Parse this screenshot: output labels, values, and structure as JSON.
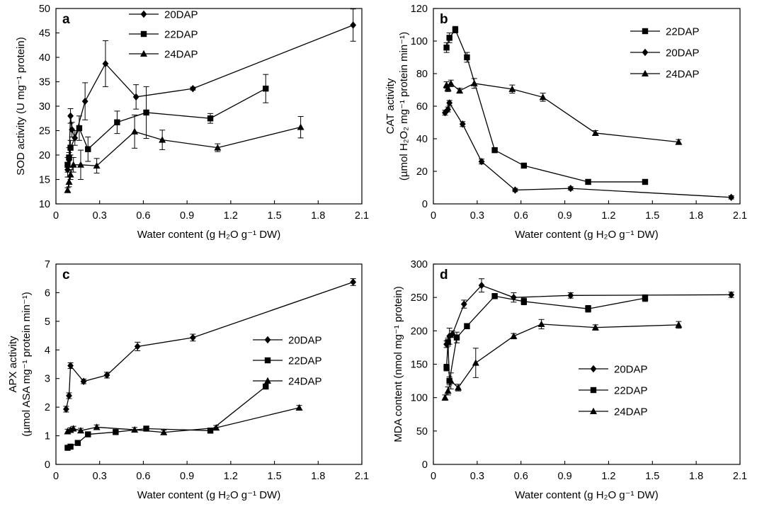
{
  "chart_data": [
    {
      "type": "line",
      "panel": "a",
      "xlabel": "Water content (g H₂O g⁻¹ DW)",
      "ylabel": "SOD activity (U mg⁻¹ protein)",
      "xlim": [
        0,
        2.1
      ],
      "ylim": [
        10,
        50
      ],
      "xticks": [
        "0",
        "0.3",
        "0.6",
        "0.9",
        "1.2",
        "1.5",
        "1.8",
        "2.1"
      ],
      "yticks": [
        "10",
        "15",
        "20",
        "25",
        "30",
        "35",
        "40",
        "45",
        "50"
      ],
      "grid": false,
      "legend_position": "top-center",
      "series": [
        {
          "name": "20DAP",
          "marker": "diamond",
          "points": [
            [
              0.08,
              17.0,
              1.5
            ],
            [
              0.09,
              19.0,
              1.5
            ],
            [
              0.1,
              28.0,
              1.5
            ],
            [
              0.11,
              25.2,
              1.5
            ],
            [
              0.13,
              23.5,
              1.5
            ],
            [
              0.2,
              31.0,
              3.8
            ],
            [
              0.34,
              38.7,
              4.7
            ],
            [
              0.55,
              31.9,
              2.5
            ],
            [
              0.94,
              33.6,
              0.3
            ],
            [
              2.04,
              46.6,
              3.3
            ]
          ]
        },
        {
          "name": "22DAP",
          "marker": "square",
          "points": [
            [
              0.08,
              18.0,
              1.5
            ],
            [
              0.09,
              19.5,
              2.0
            ],
            [
              0.1,
              21.5,
              1.5
            ],
            [
              0.16,
              25.5,
              2.5
            ],
            [
              0.22,
              21.2,
              2.5
            ],
            [
              0.42,
              26.7,
              2.3
            ],
            [
              0.62,
              28.7,
              5.3
            ],
            [
              1.06,
              27.5,
              1.0
            ],
            [
              1.44,
              33.6,
              2.9
            ]
          ]
        },
        {
          "name": "24DAP",
          "marker": "triangle",
          "points": [
            [
              0.08,
              12.8,
              0.5
            ],
            [
              0.09,
              14.5,
              1.0
            ],
            [
              0.1,
              16.0,
              1.0
            ],
            [
              0.12,
              18.0,
              1.5
            ],
            [
              0.17,
              18.0,
              3.0
            ],
            [
              0.28,
              17.8,
              1.5
            ],
            [
              0.54,
              24.8,
              3.4
            ],
            [
              0.73,
              23.1,
              2.0
            ],
            [
              1.11,
              21.5,
              0.8
            ],
            [
              1.68,
              25.7,
              2.2
            ]
          ]
        }
      ]
    },
    {
      "type": "line",
      "panel": "b",
      "xlabel": "Water content (g H₂O g⁻¹ DW)",
      "ylabel": "CAT activity (µmol H₂O₂ mg⁻¹ protein min⁻¹)",
      "xlim": [
        0,
        2.1
      ],
      "ylim": [
        0,
        120
      ],
      "xticks": [
        "0",
        "0.3",
        "0.6",
        "0.9",
        "1.2",
        "1.5",
        "1.8",
        "2.1"
      ],
      "yticks": [
        "0",
        "20",
        "40",
        "60",
        "80",
        "100",
        "120"
      ],
      "grid": false,
      "legend_position": "top-right",
      "series": [
        {
          "name": "22DAP",
          "marker": "square",
          "points": [
            [
              0.09,
              96,
              3
            ],
            [
              0.11,
              102,
              3
            ],
            [
              0.15,
              107,
              2
            ],
            [
              0.23,
              90,
              3
            ],
            [
              0.42,
              33,
              1.5
            ],
            [
              0.62,
              23.5,
              1.5
            ],
            [
              1.06,
              13.5,
              1.5
            ],
            [
              1.45,
              13.5,
              1.5
            ]
          ]
        },
        {
          "name": "20DAP",
          "marker": "diamond",
          "points": [
            [
              0.08,
              56,
              1.5
            ],
            [
              0.1,
              58,
              1.5
            ],
            [
              0.11,
              62,
              1.5
            ],
            [
              0.2,
              49,
              1.5
            ],
            [
              0.33,
              26,
              1.5
            ],
            [
              0.56,
              8.5,
              1
            ],
            [
              0.94,
              9.5,
              1
            ],
            [
              2.04,
              4,
              1
            ]
          ]
        },
        {
          "name": "24DAP",
          "marker": "triangle",
          "points": [
            [
              0.09,
              73,
              2
            ],
            [
              0.1,
              71,
              2
            ],
            [
              0.12,
              74,
              2
            ],
            [
              0.18,
              69.5,
              1.5
            ],
            [
              0.28,
              74,
              3
            ],
            [
              0.54,
              70.5,
              2.5
            ],
            [
              0.75,
              65.5,
              2.5
            ],
            [
              1.11,
              43.5,
              1.5
            ],
            [
              1.68,
              38,
              1.5
            ]
          ]
        }
      ]
    },
    {
      "type": "line",
      "panel": "c",
      "xlabel": "Water content (g H₂O g⁻¹ DW)",
      "ylabel": "APX activity (µmol ASA mg⁻¹ protein min⁻¹)",
      "xlim": [
        0,
        2.1
      ],
      "ylim": [
        0,
        7
      ],
      "xticks": [
        "0",
        "0.3",
        "0.6",
        "0.9",
        "1.2",
        "1.5",
        "1.8",
        "2.1"
      ],
      "yticks": [
        "0",
        "1",
        "2",
        "3",
        "4",
        "5",
        "6",
        "7"
      ],
      "grid": false,
      "legend_position": "center-right",
      "series": [
        {
          "name": "20DAP",
          "marker": "diamond",
          "points": [
            [
              0.07,
              1.93,
              0.1
            ],
            [
              0.09,
              2.4,
              0.1
            ],
            [
              0.1,
              3.45,
              0.1
            ],
            [
              0.19,
              2.9,
              0.08
            ],
            [
              0.35,
              3.12,
              0.1
            ],
            [
              0.56,
              4.12,
              0.15
            ],
            [
              0.94,
              4.43,
              0.12
            ],
            [
              2.04,
              6.37,
              0.12
            ]
          ]
        },
        {
          "name": "22DAP",
          "marker": "square",
          "points": [
            [
              0.08,
              0.58,
              0.08
            ],
            [
              0.1,
              0.62,
              0.08
            ],
            [
              0.15,
              0.75,
              0.08
            ],
            [
              0.22,
              1.05,
              0.08
            ],
            [
              0.41,
              1.13,
              0.08
            ],
            [
              0.62,
              1.25,
              0.08
            ],
            [
              1.06,
              1.18,
              0.08
            ],
            [
              1.44,
              2.72,
              0.08
            ]
          ]
        },
        {
          "name": "24DAP",
          "marker": "triangle",
          "points": [
            [
              0.08,
              1.15,
              0.08
            ],
            [
              0.1,
              1.2,
              0.08
            ],
            [
              0.12,
              1.25,
              0.08
            ],
            [
              0.17,
              1.18,
              0.08
            ],
            [
              0.28,
              1.3,
              0.08
            ],
            [
              0.54,
              1.21,
              0.08
            ],
            [
              0.74,
              1.12,
              0.08
            ],
            [
              1.1,
              1.28,
              0.08
            ],
            [
              1.67,
              1.98,
              0.08
            ]
          ]
        }
      ]
    },
    {
      "type": "line",
      "panel": "d",
      "xlabel": "Water content (g H₂O g⁻¹ DW)",
      "ylabel": "MDA content (nmol mg⁻¹ protein)",
      "xlim": [
        0,
        2.1
      ],
      "ylim": [
        0,
        300
      ],
      "xticks": [
        "0",
        "0.3",
        "0.6",
        "0.9",
        "1.2",
        "1.5",
        "1.8",
        "2.1"
      ],
      "yticks": [
        "0",
        "50",
        "100",
        "150",
        "200",
        "250",
        "300"
      ],
      "grid": false,
      "legend_position": "center",
      "series": [
        {
          "name": "20DAP",
          "marker": "diamond",
          "points": [
            [
              0.09,
              180,
              5
            ],
            [
              0.11,
              192,
              12
            ],
            [
              0.13,
              195,
              5
            ],
            [
              0.21,
              240,
              6
            ],
            [
              0.33,
              268,
              10
            ],
            [
              0.55,
              250,
              7
            ],
            [
              0.94,
              253,
              4
            ],
            [
              2.04,
              254,
              4
            ]
          ]
        },
        {
          "name": "22DAP",
          "marker": "square",
          "points": [
            [
              0.09,
              145,
              5
            ],
            [
              0.1,
              183,
              6
            ],
            [
              0.11,
              125,
              6
            ],
            [
              0.16,
              190,
              8
            ],
            [
              0.23,
              207,
              4
            ],
            [
              0.42,
              252,
              4
            ],
            [
              0.62,
              244,
              5
            ],
            [
              1.06,
              233,
              5
            ],
            [
              1.45,
              249,
              5
            ]
          ]
        },
        {
          "name": "24DAP",
          "marker": "triangle",
          "points": [
            [
              0.08,
              100,
              4
            ],
            [
              0.1,
              110,
              6
            ],
            [
              0.12,
              125,
              12
            ],
            [
              0.17,
              115,
              5
            ],
            [
              0.29,
              152,
              22
            ],
            [
              0.55,
              192,
              4
            ],
            [
              0.74,
              210,
              7
            ],
            [
              1.11,
              205,
              4
            ],
            [
              1.68,
              209,
              5
            ]
          ]
        }
      ]
    }
  ]
}
